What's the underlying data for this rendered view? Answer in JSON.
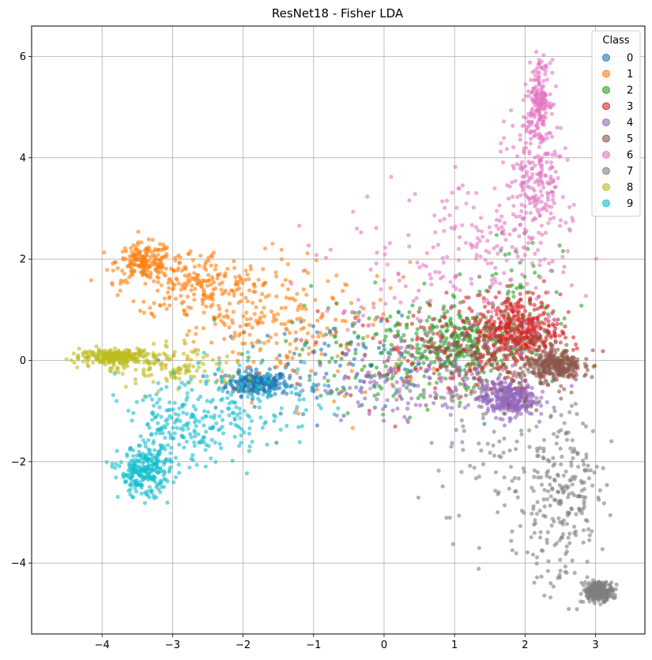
{
  "chart_data": {
    "type": "scatter",
    "title": "ResNet18 - Fisher LDA",
    "xlabel": "",
    "ylabel": "",
    "xlim": [
      -5.0,
      3.7
    ],
    "ylim": [
      -5.4,
      6.6
    ],
    "x_ticks": [
      -4,
      -3,
      -2,
      -1,
      0,
      1,
      2,
      3
    ],
    "y_ticks": [
      -4,
      -2,
      0,
      2,
      4,
      6
    ],
    "x_tick_labels": [
      "−4",
      "−3",
      "−2",
      "−1",
      "0",
      "1",
      "2",
      "3"
    ],
    "y_tick_labels": [
      "−4",
      "−2",
      "0",
      "2",
      "4",
      "6"
    ],
    "grid": true,
    "point_opacity": 0.6,
    "legend": {
      "title": "Class",
      "position": "top-right",
      "entries": [
        "0",
        "1",
        "2",
        "3",
        "4",
        "5",
        "6",
        "7",
        "8",
        "9"
      ]
    },
    "series": [
      {
        "label": "0",
        "color": "#1f77b4",
        "clusters": [
          {
            "center": [
              -1.8,
              -0.45
            ],
            "spread": [
              0.22,
              0.12
            ],
            "count": 230
          },
          {
            "center": [
              -0.6,
              -0.1
            ],
            "spread": [
              0.9,
              0.45
            ],
            "count": 120
          }
        ]
      },
      {
        "label": "1",
        "color": "#ff7f0e",
        "clusters": [
          {
            "center": [
              -3.4,
              1.95
            ],
            "spread": [
              0.2,
              0.18
            ],
            "count": 170
          },
          {
            "center": [
              -2.7,
              1.5
            ],
            "spread": [
              0.5,
              0.35
            ],
            "count": 180
          },
          {
            "center": [
              -2.0,
              0.9
            ],
            "spread": [
              0.65,
              0.6
            ],
            "count": 190
          },
          {
            "center": [
              -0.8,
              0.5
            ],
            "spread": [
              0.7,
              0.7
            ],
            "count": 80
          }
        ]
      },
      {
        "label": "2",
        "color": "#2ca02c",
        "clusters": [
          {
            "center": [
              1.2,
              0.3
            ],
            "spread": [
              0.5,
              0.35
            ],
            "count": 300
          },
          {
            "center": [
              0.3,
              0.1
            ],
            "spread": [
              0.9,
              0.55
            ],
            "count": 180
          },
          {
            "center": [
              1.8,
              1.3
            ],
            "spread": [
              0.35,
              0.8
            ],
            "count": 60
          }
        ]
      },
      {
        "label": "3",
        "color": "#d62728",
        "clusters": [
          {
            "center": [
              1.9,
              0.6
            ],
            "spread": [
              0.3,
              0.35
            ],
            "count": 400
          },
          {
            "center": [
              1.0,
              0.2
            ],
            "spread": [
              0.8,
              0.5
            ],
            "count": 170
          }
        ]
      },
      {
        "label": "4",
        "color": "#9467bd",
        "clusters": [
          {
            "center": [
              1.75,
              -0.75
            ],
            "spread": [
              0.2,
              0.18
            ],
            "count": 320
          },
          {
            "center": [
              0.6,
              -0.4
            ],
            "spread": [
              0.8,
              0.4
            ],
            "count": 150
          }
        ]
      },
      {
        "label": "5",
        "color": "#8c564b",
        "clusters": [
          {
            "center": [
              2.45,
              -0.1
            ],
            "spread": [
              0.17,
              0.15
            ],
            "count": 280
          },
          {
            "center": [
              1.6,
              0.0
            ],
            "spread": [
              0.6,
              0.5
            ],
            "count": 150
          }
        ]
      },
      {
        "label": "6",
        "color": "#e377c2",
        "clusters": [
          {
            "center": [
              2.2,
              5.2
            ],
            "spread": [
              0.08,
              0.35
            ],
            "count": 170
          },
          {
            "center": [
              2.15,
              3.6
            ],
            "spread": [
              0.2,
              0.7
            ],
            "count": 220
          },
          {
            "center": [
              1.6,
              2.2
            ],
            "spread": [
              0.55,
              0.8
            ],
            "count": 140
          },
          {
            "center": [
              0.5,
              1.4
            ],
            "spread": [
              0.8,
              0.9
            ],
            "count": 110
          }
        ]
      },
      {
        "label": "7",
        "color": "#7f7f7f",
        "clusters": [
          {
            "center": [
              3.05,
              -4.55
            ],
            "spread": [
              0.1,
              0.09
            ],
            "count": 270
          },
          {
            "center": [
              2.5,
              -2.8
            ],
            "spread": [
              0.3,
              0.9
            ],
            "count": 230
          },
          {
            "center": [
              1.6,
              -2.2
            ],
            "spread": [
              0.6,
              0.8
            ],
            "count": 90
          }
        ]
      },
      {
        "label": "8",
        "color": "#bcbd22",
        "clusters": [
          {
            "center": [
              -3.8,
              0.08
            ],
            "spread": [
              0.25,
              0.07
            ],
            "count": 260
          },
          {
            "center": [
              -3.0,
              -0.15
            ],
            "spread": [
              0.5,
              0.2
            ],
            "count": 130
          }
        ]
      },
      {
        "label": "9",
        "color": "#17becf",
        "clusters": [
          {
            "center": [
              -3.4,
              -2.2
            ],
            "spread": [
              0.18,
              0.25
            ],
            "count": 260
          },
          {
            "center": [
              -2.9,
              -1.4
            ],
            "spread": [
              0.4,
              0.4
            ],
            "count": 160
          },
          {
            "center": [
              -2.0,
              -0.8
            ],
            "spread": [
              0.6,
              0.45
            ],
            "count": 150
          }
        ]
      }
    ]
  }
}
